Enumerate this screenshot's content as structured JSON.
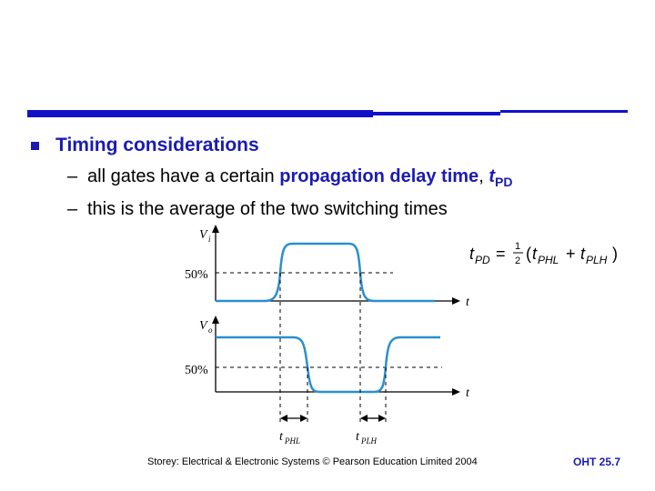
{
  "slide": {
    "bullet": "Timing considerations",
    "subpoints": [
      {
        "dash": "–",
        "before": "all gates have a certain ",
        "highlight": "propagation delay time",
        "comma": ", ",
        "sym_main": "t",
        "sym_sub": "PD"
      },
      {
        "dash": "–",
        "text": "this is the average of the two switching times"
      }
    ],
    "formula": {
      "lhs": "t",
      "lhs_sub": "PD",
      "eq": "=",
      "frac_num": "1",
      "frac_den": "2",
      "lparen": "(",
      "t1": "t",
      "t1_sub": "PHL",
      "plus": "+",
      "t2": "t",
      "t2_sub": "PLH",
      "rparen": ")"
    },
    "footer_left": "Storey: Electrical & Electronic Systems © Pearson Education Limited 2004",
    "footer_right": "OHT 25.7"
  },
  "diagram": {
    "input_label": "V",
    "input_sub": "i",
    "output_label": "V",
    "output_sub": "o",
    "level_top": "50%",
    "level_bottom": "50%",
    "time_top": "t",
    "time_bottom": "t",
    "delay1": "t",
    "delay1_sub": "PHL",
    "delay2": "t",
    "delay2_sub": "PLH",
    "colors": {
      "signal": "#2a8fd0",
      "axis": "#000000",
      "accent": "#1a1ab4"
    }
  }
}
